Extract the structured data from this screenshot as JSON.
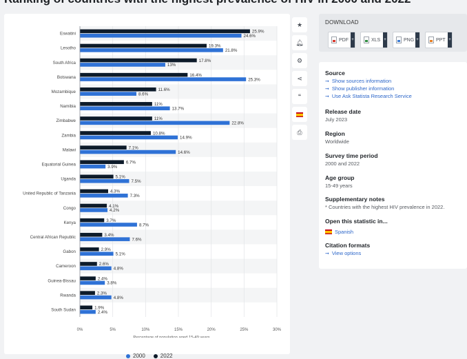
{
  "page": {
    "title": "Ranking of countries with the highest prevalence of HIV in 2000 and 2022*"
  },
  "chart_data": {
    "type": "bar",
    "orientation": "horizontal",
    "categories": [
      "Eswatini",
      "Lesotho",
      "South Africa",
      "Botswana",
      "Mozambique",
      "Namibia",
      "Zimbabwe",
      "Zambia",
      "Malawi",
      "Equatorial Guinea",
      "Uganda",
      "United Republic of Tanzania",
      "Congo",
      "Kenya",
      "Central African Republic",
      "Gabon",
      "Cameroon",
      "Guinea-Bissau",
      "Rwanda",
      "South Sudan"
    ],
    "series": [
      {
        "name": "2022",
        "color": "#0d1b2a",
        "values": [
          25.9,
          19.3,
          17.8,
          16.4,
          11.6,
          11,
          11,
          10.8,
          7.1,
          6.7,
          5.1,
          4.3,
          4.1,
          3.7,
          3.4,
          2.9,
          2.6,
          2.4,
          2.3,
          1.9
        ],
        "labels": [
          "25.9%",
          "19.3%",
          "17.8%",
          "16.4%",
          "11.6%",
          "11%",
          "11%",
          "10.8%",
          "7.1%",
          "6.7%",
          "5.1%",
          "4.3%",
          "4.1%",
          "3.7%",
          "3.4%",
          "2.9%",
          "2.6%",
          "2.4%",
          "2.3%",
          "1.9%"
        ]
      },
      {
        "name": "2000",
        "color": "#2f72d6",
        "values": [
          24.6,
          21.8,
          13,
          25.3,
          8.6,
          13.7,
          22.8,
          14.9,
          14.6,
          3.9,
          7.5,
          7.3,
          4.2,
          8.7,
          7.6,
          5.1,
          4.8,
          3.8,
          4.8,
          2.4
        ],
        "labels": [
          "24.6%",
          "21.8%",
          "13%",
          "25.3%",
          "8.6%",
          "13.7%",
          "22.8%",
          "14.9%",
          "14.6%",
          "3.9%",
          "7.5%",
          "7.3%",
          "4.2%",
          "8.7%",
          "7.6%",
          "5.1%",
          "4.8%",
          "3.8%",
          "4.8%",
          "2.4%"
        ]
      }
    ],
    "xlabel": "Percentage of population aged 15-49 years",
    "ylabel": "",
    "xlim": [
      0,
      30
    ],
    "ticks": [
      0,
      5,
      10,
      15,
      20,
      25,
      30
    ],
    "tick_labels": [
      "0%",
      "5%",
      "10%",
      "15%",
      "20%",
      "25%",
      "30%"
    ],
    "grid": true,
    "legend_position": "bottom",
    "legend": [
      {
        "label": "2000",
        "color": "#2f72d6"
      },
      {
        "label": "2022",
        "color": "#0d1b2a"
      }
    ]
  },
  "toolbar": {
    "icons": [
      "star-icon",
      "bell-icon",
      "gear-icon",
      "share-icon",
      "quote-icon",
      "flag-es-icon",
      "print-icon"
    ]
  },
  "download": {
    "title": "DOWNLOAD",
    "buttons": [
      {
        "label": "PDF",
        "icon": "pdf-file-icon"
      },
      {
        "label": "XLS",
        "icon": "xls-file-icon"
      },
      {
        "label": "PNG",
        "icon": "png-file-icon"
      },
      {
        "label": "PPT",
        "icon": "ppt-file-icon"
      }
    ],
    "plus": "+"
  },
  "info": {
    "source_label": "Source",
    "source_links": [
      "Show sources information",
      "Show publisher information",
      "Use Ask Statista Research Service"
    ],
    "release_label": "Release date",
    "release_value": "July 2023",
    "region_label": "Region",
    "region_value": "Worldwide",
    "survey_label": "Survey time period",
    "survey_value": "2000 and 2022",
    "age_label": "Age group",
    "age_value": "15-49 years",
    "notes_label": "Supplementary notes",
    "notes_value": "* Countries with the highest HIV prevalence in 2022.",
    "open_label": "Open this statistic in...",
    "open_language": "Spanish",
    "citation_label": "Citation formats",
    "citation_link": "View options",
    "arrow": "➞"
  }
}
